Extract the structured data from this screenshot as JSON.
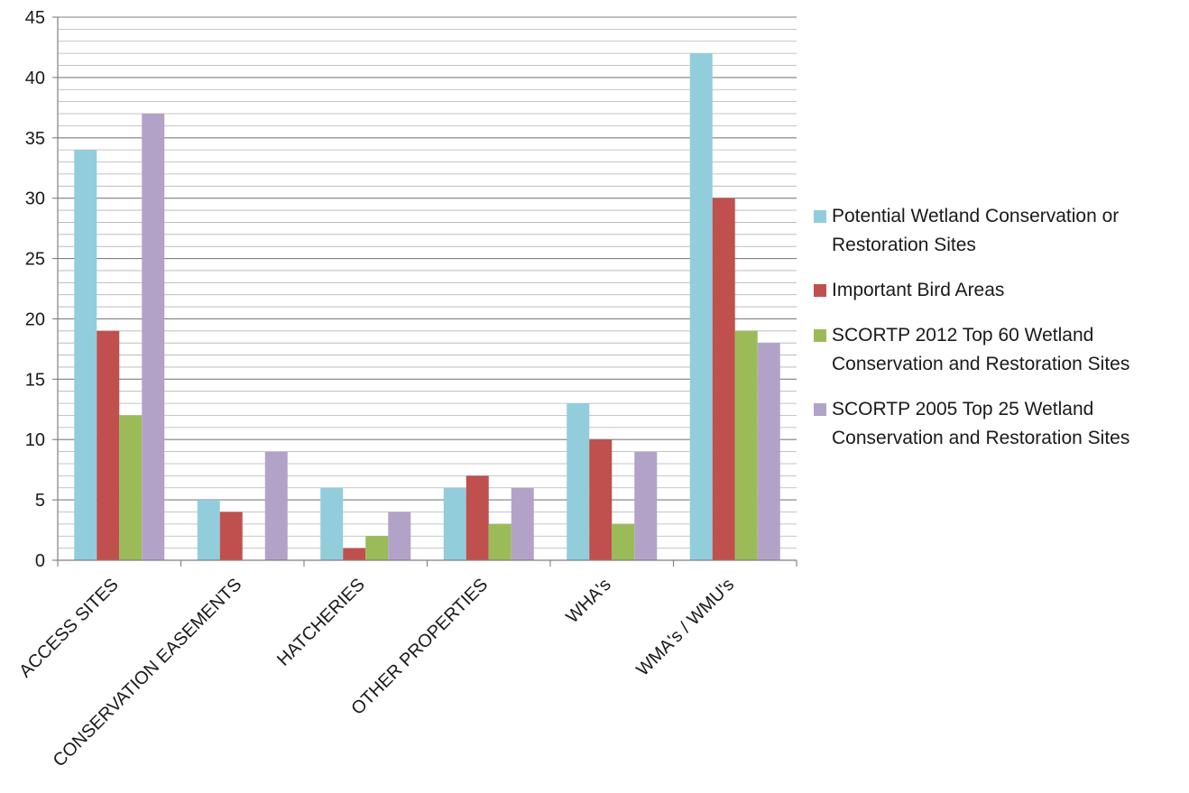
{
  "chart_data": {
    "type": "bar",
    "title": "",
    "xlabel": "",
    "ylabel": "",
    "ylim": [
      0,
      45
    ],
    "yticks": [
      0,
      5,
      10,
      15,
      20,
      25,
      30,
      35,
      40,
      45
    ],
    "minor_grid_step": 1,
    "grid": true,
    "legend_position": "right",
    "categories": [
      "ACCESS SITES",
      "CONSERVATION EASEMENTS",
      "HATCHERIES",
      "OTHER PROPERTIES",
      "WHA's",
      "WMA's / WMU's"
    ],
    "series": [
      {
        "name": "Potential Wetland Conservation or Restoration Sites",
        "color": "#92cddc",
        "values": [
          34,
          5,
          6,
          6,
          13,
          42
        ]
      },
      {
        "name": "Important Bird Areas",
        "color": "#c0504d",
        "values": [
          19,
          4,
          1,
          7,
          10,
          30
        ]
      },
      {
        "name": "SCORTP 2012 Top 60 Wetland Conservation and Restoration Sites",
        "color": "#9bbb59",
        "values": [
          12,
          0,
          2,
          3,
          3,
          19
        ]
      },
      {
        "name": "SCORTP 2005 Top 25 Wetland Conservation and Restoration Sites",
        "color": "#b3a2c7",
        "values": [
          37,
          9,
          4,
          6,
          9,
          18
        ]
      }
    ]
  }
}
